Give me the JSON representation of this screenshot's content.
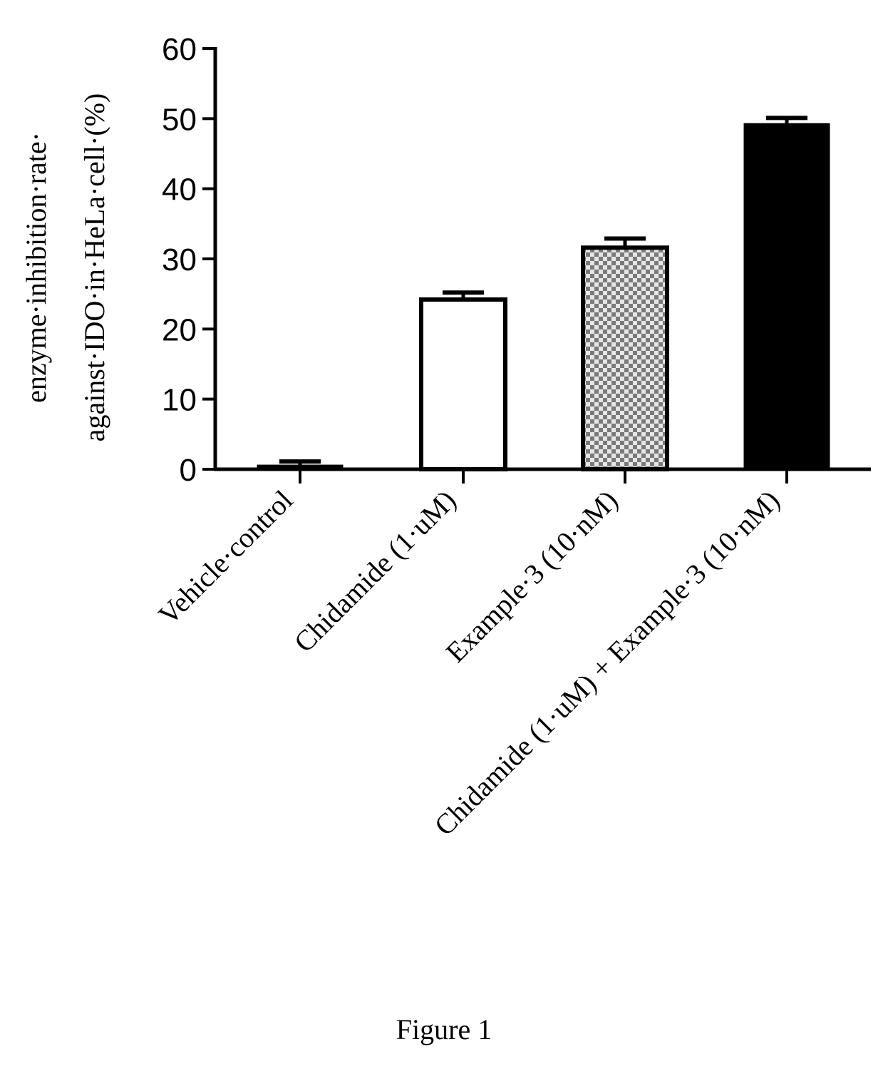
{
  "figure_caption": "Figure 1",
  "chart_data": {
    "type": "bar",
    "ylabel_lines": [
      "enzyme·inhibition·rate·",
      "against·IDO·in·HeLa·cell·(%)"
    ],
    "ylim": [
      0,
      60
    ],
    "yticks": [
      0,
      10,
      20,
      30,
      40,
      50,
      60
    ],
    "categories": [
      "Vehicle·control",
      "Chidamide (1·uM)",
      "Example·3 (10·nM)",
      "Chidamide (1·uM) + Example·3 (10·nM)"
    ],
    "series": [
      {
        "values": [
          0.5,
          24.2,
          31.6,
          49.2
        ],
        "errors": [
          0.6,
          1.0,
          1.3,
          0.9
        ],
        "fills": [
          "solid",
          "white",
          "checkered",
          "solid"
        ]
      }
    ],
    "grid": false,
    "legend": "none",
    "colors": {
      "ink": "#000000",
      "background": "#ffffff",
      "check_light": "#e6e6e6",
      "check_dark": "#7a7a7a"
    }
  }
}
